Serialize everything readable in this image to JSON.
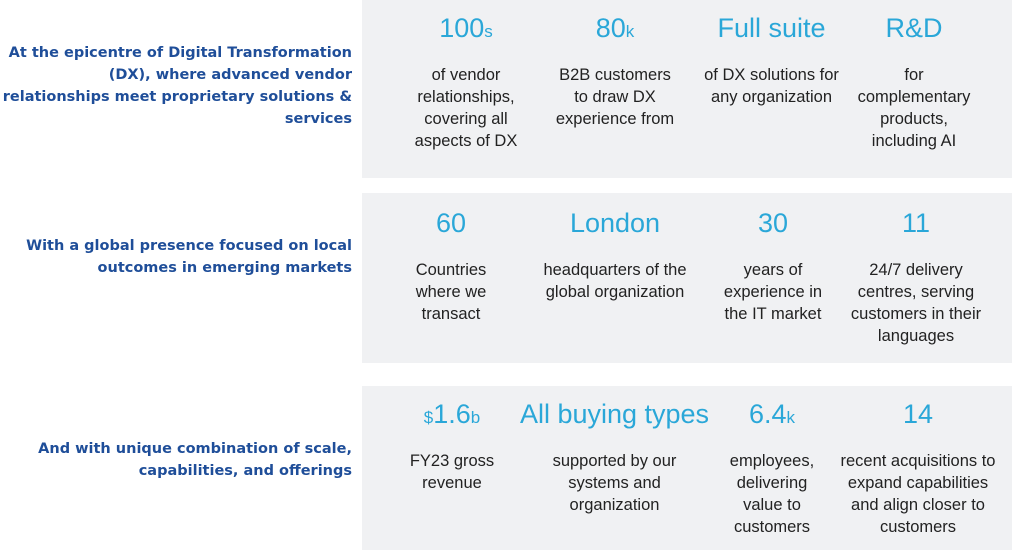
{
  "rows": [
    {
      "label": "At the epicentre of Digital Transformation (DX), where advanced vendor relationships meet proprietary solutions & services",
      "stats": [
        {
          "prefix": "",
          "value": "100",
          "suffix": "s",
          "description": "of vendor relationships, covering all aspects of DX"
        },
        {
          "prefix": "",
          "value": "80",
          "suffix": "k",
          "description": "B2B customers to draw DX experience from"
        },
        {
          "prefix": "",
          "value": "Full suite",
          "suffix": "",
          "description": "of DX solutions for any organization"
        },
        {
          "prefix": "",
          "value": "R&D",
          "suffix": "",
          "description": "for complementary products, including AI"
        }
      ]
    },
    {
      "label": "With a global presence focused on local outcomes in emerging markets",
      "stats": [
        {
          "prefix": "",
          "value": "60",
          "suffix": "",
          "description": "Countries where we transact"
        },
        {
          "prefix": "",
          "value": "London",
          "suffix": "",
          "description": "headquarters of the global organization"
        },
        {
          "prefix": "",
          "value": "30",
          "suffix": "",
          "description": "years of experience in the IT market"
        },
        {
          "prefix": "",
          "value": "11",
          "suffix": "",
          "description": "24/7 delivery centres, serving customers in their languages"
        }
      ]
    },
    {
      "label": "And with unique combination of scale, capabilities, and offerings",
      "stats": [
        {
          "prefix": "$",
          "value": "1.6",
          "suffix": "b",
          "description": "FY23 gross revenue"
        },
        {
          "prefix": "",
          "value": "All buying types",
          "suffix": "",
          "description": "supported by our systems and organization"
        },
        {
          "prefix": "",
          "value": "6.4",
          "suffix": "k",
          "description": "employees, delivering value to customers"
        },
        {
          "prefix": "",
          "value": "14",
          "suffix": "",
          "description": "recent acquisitions to expand capabilities and align closer to customers"
        }
      ]
    }
  ],
  "colors": {
    "label": "#1f4e99",
    "value": "#2aa7d8",
    "description": "#222222",
    "panel": "#f0f1f3"
  }
}
